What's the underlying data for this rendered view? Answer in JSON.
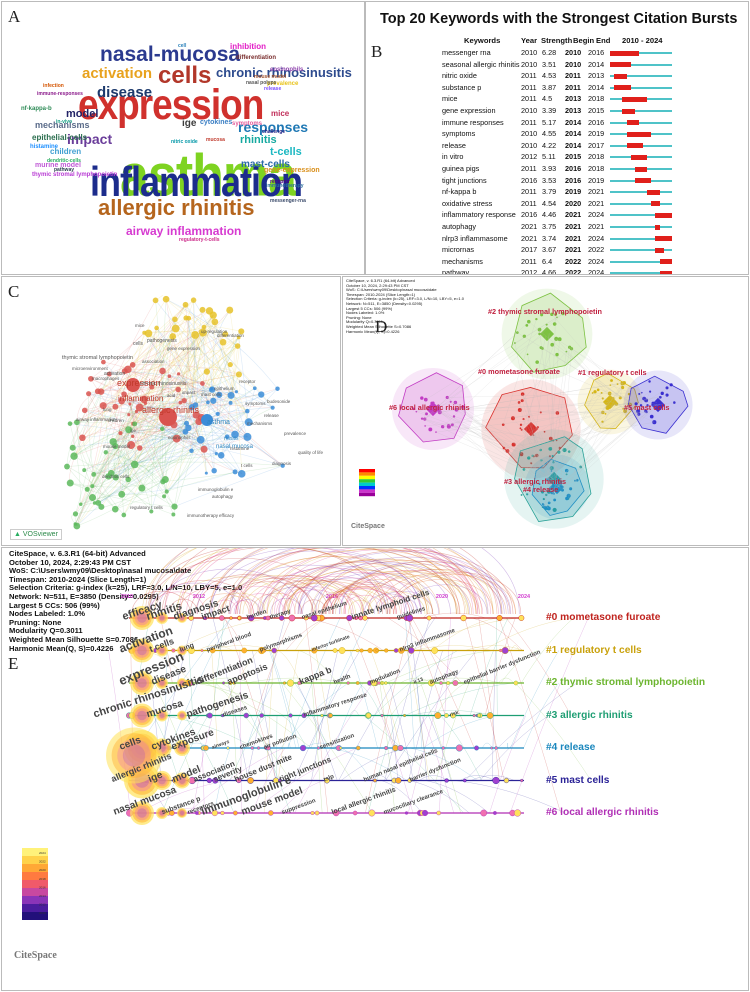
{
  "panels": {
    "A": "A",
    "B": "B",
    "C": "C",
    "D": "D",
    "E": "E"
  },
  "wordcloud": {
    "words": [
      {
        "text": "asthma",
        "color": "#7ed321"
      },
      {
        "text": "expression",
        "color": "#d0312d"
      },
      {
        "text": "inflammation",
        "color": "#1c2c8c"
      },
      {
        "text": "cells",
        "color": "#b2372a"
      },
      {
        "text": "nasal-mucosa",
        "color": "#2b3a8f"
      },
      {
        "text": "allergic rhinitis",
        "color": "#b5651d"
      },
      {
        "text": "activation",
        "color": "#e8a21e"
      },
      {
        "text": "chronic rhinosinusitis",
        "color": "#2d4b8e"
      },
      {
        "text": "disease",
        "color": "#1d3a6d"
      },
      {
        "text": "responses",
        "color": "#1f78b4"
      },
      {
        "text": "impact",
        "color": "#6a3d9a"
      },
      {
        "text": "airway inflammation",
        "color": "#d63ad0"
      },
      {
        "text": "mechanisms",
        "color": "#5b6c8a"
      },
      {
        "text": "rhinitis",
        "color": "#16a9a0"
      },
      {
        "text": "mast-cells",
        "color": "#2b6aa8"
      },
      {
        "text": "t-cells",
        "color": "#1cb8c2"
      },
      {
        "text": "model",
        "color": "#222266"
      },
      {
        "text": "epithelial-cells",
        "color": "#2a6e4e"
      },
      {
        "text": "ige",
        "color": "#3c3c3c"
      },
      {
        "text": "cytokines",
        "color": "#3b7fc4"
      },
      {
        "text": "symptoms",
        "color": "#e25c9b"
      },
      {
        "text": "children",
        "color": "#3f9fd1"
      },
      {
        "text": "mice",
        "color": "#c12f5a"
      },
      {
        "text": "gene-expression",
        "color": "#d98f1a"
      },
      {
        "text": "inhibition",
        "color": "#e21cc6"
      },
      {
        "text": "differentiation",
        "color": "#7a2e2e"
      },
      {
        "text": "histamine",
        "color": "#1e90ff"
      },
      {
        "text": "murine model",
        "color": "#c05ad6"
      },
      {
        "text": "messenger-rna",
        "color": "#3a4a6a"
      },
      {
        "text": "nf-kappa-b",
        "color": "#2e8b57"
      },
      {
        "text": "immune-responses",
        "color": "#8b1a8b"
      },
      {
        "text": "regulatory-t-cells",
        "color": "#cc2b8a"
      },
      {
        "text": "thymic stromal lymphopoietin",
        "color": "#b83bd4"
      },
      {
        "text": "prevalence",
        "color": "#e8c31c"
      },
      {
        "text": "mouse model",
        "color": "#a0522d"
      },
      {
        "text": "eosinophils",
        "color": "#8e44ad"
      },
      {
        "text": "pathway",
        "color": "#2c3e50"
      },
      {
        "text": "immunotherapy",
        "color": "#2c6e9e"
      },
      {
        "text": "receptor",
        "color": "#4b0082"
      },
      {
        "text": "dendritic-cells",
        "color": "#27ae60"
      },
      {
        "text": "challenge",
        "color": "#1a1a80"
      },
      {
        "text": "release",
        "color": "#7c4dff"
      },
      {
        "text": "nasal polyps",
        "color": "#555"
      },
      {
        "text": "infection",
        "color": "#d35400"
      },
      {
        "text": "in-vivo",
        "color": "#16a085"
      },
      {
        "text": "nitric oxide",
        "color": "#0097a7"
      },
      {
        "text": "mucosa",
        "color": "#c0392b"
      },
      {
        "text": "cell",
        "color": "#2980b9"
      }
    ]
  },
  "bursts": {
    "title": "Top 20 Keywords with the Strongest Citation Bursts",
    "headers": {
      "keyword": "Keywords",
      "year": "Year",
      "strength": "Strength",
      "begin": "Begin",
      "end": "End",
      "range": "2010 - 2024"
    },
    "start_year": 2010,
    "end_year": 2024,
    "rows": [
      {
        "keyword": "messenger rna",
        "year": 2010,
        "strength": "6.28",
        "begin": 2010,
        "end": 2016
      },
      {
        "keyword": "seasonal allergic rhinitis",
        "year": 2010,
        "strength": "3.51",
        "begin": 2010,
        "end": 2014
      },
      {
        "keyword": "nitric oxide",
        "year": 2011,
        "strength": "4.53",
        "begin": 2011,
        "end": 2013
      },
      {
        "keyword": "substance p",
        "year": 2011,
        "strength": "3.87",
        "begin": 2011,
        "end": 2014
      },
      {
        "keyword": "mice",
        "year": 2011,
        "strength": "4.5",
        "begin": 2013,
        "end": 2018
      },
      {
        "keyword": "gene expression",
        "year": 2010,
        "strength": "3.39",
        "begin": 2013,
        "end": 2015
      },
      {
        "keyword": "immune responses",
        "year": 2011,
        "strength": "5.17",
        "begin": 2014,
        "end": 2016
      },
      {
        "keyword": "symptoms",
        "year": 2010,
        "strength": "4.55",
        "begin": 2014,
        "end": 2019
      },
      {
        "keyword": "release",
        "year": 2010,
        "strength": "4.22",
        "begin": 2014,
        "end": 2017
      },
      {
        "keyword": "in vitro",
        "year": 2012,
        "strength": "5.11",
        "begin": 2015,
        "end": 2018
      },
      {
        "keyword": "guinea pigs",
        "year": 2011,
        "strength": "3.93",
        "begin": 2016,
        "end": 2018
      },
      {
        "keyword": "tight junctions",
        "year": 2016,
        "strength": "3.53",
        "begin": 2016,
        "end": 2019
      },
      {
        "keyword": "nf-kappa b",
        "year": 2011,
        "strength": "3.79",
        "begin": 2019,
        "end": 2021
      },
      {
        "keyword": "oxidative stress",
        "year": 2011,
        "strength": "4.54",
        "begin": 2020,
        "end": 2021
      },
      {
        "keyword": "inflammatory response",
        "year": 2016,
        "strength": "4.46",
        "begin": 2021,
        "end": 2024
      },
      {
        "keyword": "autophagy",
        "year": 2021,
        "strength": "3.75",
        "begin": 2021,
        "end": 2021
      },
      {
        "keyword": "nlrp3 inflammasome",
        "year": 2021,
        "strength": "3.74",
        "begin": 2021,
        "end": 2024
      },
      {
        "keyword": "micrornas",
        "year": 2017,
        "strength": "3.67",
        "begin": 2021,
        "end": 2022
      },
      {
        "keyword": "mechanisms",
        "year": 2011,
        "strength": "6.4",
        "begin": 2022,
        "end": 2024
      },
      {
        "keyword": "pathway",
        "year": 2012,
        "strength": "4.66",
        "begin": 2022,
        "end": 2024
      }
    ],
    "colors": {
      "base": "#4fc3c8",
      "burst": "#e0201b"
    }
  },
  "vos": {
    "terms": [
      {
        "text": "allergic rhinitis",
        "color": "#c0392b"
      },
      {
        "text": "expression",
        "color": "#c0392b"
      },
      {
        "text": "inflammation",
        "color": "#c0392b"
      },
      {
        "text": "asthma",
        "color": "#2e86c1"
      },
      {
        "text": "nasal mucosa",
        "color": "#2e86c1"
      },
      {
        "text": "rhinitis",
        "color": "#2e86c1"
      },
      {
        "text": "thymic stromal lymphopoietin",
        "color": "#555"
      },
      {
        "text": "chronic rhinosinusitis",
        "color": "#555"
      },
      {
        "text": "activation",
        "color": "#555"
      },
      {
        "text": "cells",
        "color": "#555"
      },
      {
        "text": "pathogenesis",
        "color": "#555"
      },
      {
        "text": "up-regulation",
        "color": "#555"
      },
      {
        "text": "microenvironment",
        "color": "#555"
      },
      {
        "text": "macrophages",
        "color": "#555"
      },
      {
        "text": "airway inflammation",
        "color": "#555"
      },
      {
        "text": "differentiation",
        "color": "#555"
      },
      {
        "text": "immunoglobulin e",
        "color": "#555"
      },
      {
        "text": "mouse model",
        "color": "#555"
      },
      {
        "text": "dendritic cells",
        "color": "#555"
      },
      {
        "text": "regulatory t cells",
        "color": "#555"
      },
      {
        "text": "immunotherapy",
        "color": "#555"
      },
      {
        "text": "autophagy",
        "color": "#555"
      },
      {
        "text": "prevalence",
        "color": "#555"
      },
      {
        "text": "efficacy",
        "color": "#555"
      },
      {
        "text": "quality of life",
        "color": "#555"
      },
      {
        "text": "diagnosis",
        "color": "#555"
      },
      {
        "text": "children",
        "color": "#555"
      },
      {
        "text": "symptoms",
        "color": "#555"
      },
      {
        "text": "mechanisms",
        "color": "#555"
      },
      {
        "text": "gene expression",
        "color": "#555"
      },
      {
        "text": "epithelium",
        "color": "#555"
      },
      {
        "text": "lung",
        "color": "#555"
      },
      {
        "text": "release",
        "color": "#555"
      },
      {
        "text": "ige",
        "color": "#555"
      },
      {
        "text": "impact",
        "color": "#555"
      },
      {
        "text": "acid",
        "color": "#555"
      },
      {
        "text": "association",
        "color": "#555"
      },
      {
        "text": "mast cells",
        "color": "#555"
      },
      {
        "text": "eosinophils",
        "color": "#555"
      },
      {
        "text": "budesonide",
        "color": "#555"
      },
      {
        "text": "receptor",
        "color": "#555"
      },
      {
        "text": "t cells",
        "color": "#555"
      },
      {
        "text": "mice",
        "color": "#555"
      },
      {
        "text": "histamine",
        "color": "#555"
      }
    ],
    "logo": "VOSviewer"
  },
  "cluster_map": {
    "header": [
      "CiteSpace, v. 6.3.R1 (64-bit) Advanced",
      "October 10, 2024, 2:29:43 PM CST",
      "WoS: C:\\Users\\wmy09\\Desktop\\nasal mucosa\\date",
      "Timespan: 2010-2024 (Slice Length=1)",
      "Selection Criteria: g-index (k=25), LRF=3.0, L/N=10, LBY=5, e=1.0",
      "Network: N=511, E=3850 (Density=0.0295)",
      "Largest 5 CCs: 506 (99%)",
      "Nodes Labeled: 1.0%",
      "Pruning: None",
      "Modularity Q=0.3011",
      "Weighted Mean Silhouette S=0.7086",
      "Harmonic Mean(Q, S)=0.4226"
    ],
    "clusters": [
      {
        "label": "#2 thymic stromal lymphopoietin",
        "color": "#7dc242"
      },
      {
        "label": "#0 mometasone furoate",
        "color": "#d9302c"
      },
      {
        "label": "#6 local allergic rhinitis",
        "color": "#c23bc4"
      },
      {
        "label": "#1 regulatory t cells",
        "color": "#d6b614"
      },
      {
        "label": "#5 mast cells",
        "color": "#3a2fd0"
      },
      {
        "label": "#3 allergic rhinitis",
        "color": "#2aa198"
      },
      {
        "label": "#4 release",
        "color": "#1f8fc4"
      }
    ],
    "logo": "CiteSpace"
  },
  "timeline": {
    "header": [
      "CiteSpace, v. 6.3.R1 (64-bit) Advanced",
      "October 10, 2024, 2:29:43 PM CST",
      "WoS: C:\\Users\\wmy09\\Desktop\\nasal mucosa\\date",
      "Timespan: 2010-2024 (Slice Length=1)",
      "Selection Criteria: g-index (k=25), LRF=3.0, L/N=10, LBY=5, e=1.0",
      "Network: N=511, E=3850 (Density=0.0295)",
      "Largest 5 CCs: 506 (99%)",
      "Nodes Labeled: 1.0%",
      "Pruning: None",
      "Modularity Q=0.3011",
      "Weighted Mean Silhouette S=0.7086",
      "Harmonic Mean(Q, S)=0.4226"
    ],
    "years": [
      "2010",
      "2012",
      "2016",
      "2020",
      "2024"
    ],
    "clusters": [
      {
        "label": "#0 mometasone furoate",
        "color": "#c0241f",
        "terms": [
          "efficacy",
          "rhinitis",
          "diagnosis",
          "impact",
          "burden",
          "therapy",
          "nasal epithelium",
          "innate lymphoid cells",
          "guidelines"
        ]
      },
      {
        "label": "#1 regulatory t cells",
        "color": "#c9a10c",
        "terms": [
          "activation",
          "t cells",
          "lung",
          "peripheral blood",
          "polymorphisms",
          "inferior turbinate",
          "nlrp3 inflammasome"
        ]
      },
      {
        "label": "#2 thymic stromal lymphopoietin",
        "color": "#6cb52f",
        "terms": [
          "expression",
          "disease",
          "differentiation",
          "apoptosis",
          "kappa b",
          "health",
          "modulation",
          "il 13",
          "autophagy",
          "epithelial barrier dysfunction"
        ]
      },
      {
        "label": "#3 allergic rhinitis",
        "color": "#1e9e73",
        "terms": [
          "chronic rhinosinusitis",
          "mucosa",
          "pathogenesis",
          "diseases",
          "inflammatory response",
          "risk"
        ]
      },
      {
        "label": "#4 release",
        "color": "#1a87bd",
        "terms": [
          "cells",
          "cytokines",
          "exposure",
          "airways",
          "chemokines",
          "air pollution",
          "sensitization"
        ]
      },
      {
        "label": "#5 mast cells",
        "color": "#2b2397",
        "terms": [
          "allergic rhinitis",
          "ige",
          "model",
          "association",
          "severity",
          "house dust mite",
          "tight junctions",
          "tslp",
          "human nasal epithelial cells",
          "barrier dysfunction"
        ]
      },
      {
        "label": "#6 local allergic rhinitis",
        "color": "#b02fb5",
        "terms": [
          "nasal mucosa",
          "substance p",
          "receptors",
          "immunoglobulin e",
          "mouse model",
          "suppression",
          "local allergic rhinitis",
          "mucociliary clearance"
        ]
      }
    ],
    "legend_years": [
      "2024",
      "2022",
      "2020",
      "2018",
      "2016",
      "2014",
      "2012",
      "2010"
    ],
    "logo": "CiteSpace"
  }
}
